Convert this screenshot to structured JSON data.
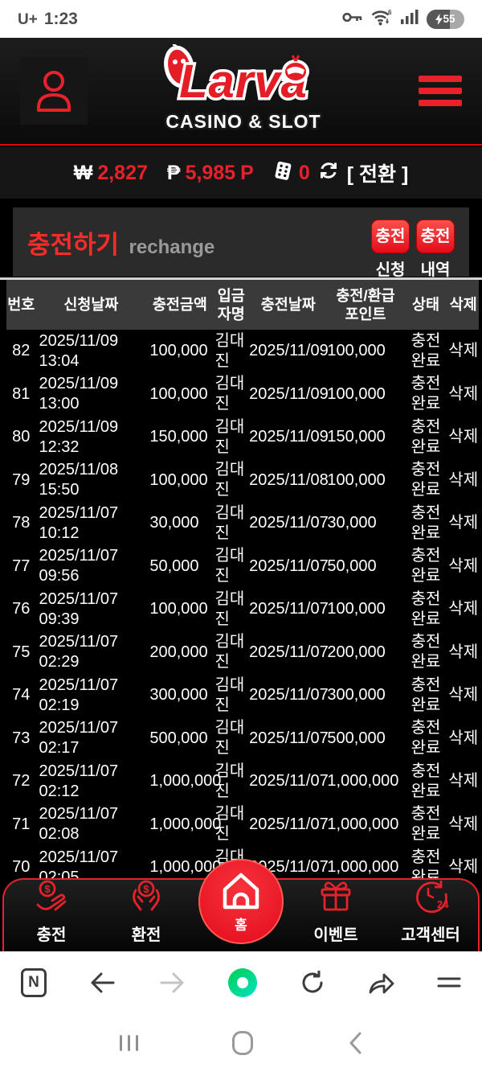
{
  "colors": {
    "accent_red": "#e8212b",
    "title_red": "#ff2a2a",
    "table_header_bg": "#3a3a3a"
  },
  "status_bar": {
    "carrier": "U+",
    "time": "1:23",
    "battery_percent": "55"
  },
  "header": {
    "logo_word": "Larva",
    "logo_tagline": "CASINO & SLOT"
  },
  "balance_bar": {
    "won_symbol": "₩",
    "won_amount": "2,827",
    "peso_symbol": "₱",
    "peso_amount": "5,985",
    "peso_unit": "P",
    "dice_count": "0",
    "convert_label": "[ 전환 ]"
  },
  "recharge": {
    "title": "충전하기",
    "subtitle": "rechange",
    "btn_request_top": "충전",
    "btn_request_bottom": "신청",
    "btn_history_top": "충전",
    "btn_history_bottom": "내역"
  },
  "table": {
    "headers": {
      "no": "번호",
      "request_date": "신청날짜",
      "amount": "충전금액",
      "depositor": "입금자명",
      "recharge_date": "충전날짜",
      "points": "충전/환급 포인트",
      "status": "상태",
      "delete": "삭제"
    },
    "rows": [
      {
        "no": "82",
        "date": "2025/11/09",
        "time": "13:04",
        "amount": "100,000",
        "depositor": "김대진",
        "recharge_date": "2025/11/09",
        "points": "100,000",
        "status": "충전완료",
        "delete": "삭제"
      },
      {
        "no": "81",
        "date": "2025/11/09",
        "time": "13:00",
        "amount": "100,000",
        "depositor": "김대진",
        "recharge_date": "2025/11/09",
        "points": "100,000",
        "status": "충전완료",
        "delete": "삭제"
      },
      {
        "no": "80",
        "date": "2025/11/09",
        "time": "12:32",
        "amount": "150,000",
        "depositor": "김대진",
        "recharge_date": "2025/11/09",
        "points": "150,000",
        "status": "충전완료",
        "delete": "삭제"
      },
      {
        "no": "79",
        "date": "2025/11/08",
        "time": "15:50",
        "amount": "100,000",
        "depositor": "김대진",
        "recharge_date": "2025/11/08",
        "points": "100,000",
        "status": "충전완료",
        "delete": "삭제"
      },
      {
        "no": "78",
        "date": "2025/11/07",
        "time": "10:12",
        "amount": "30,000",
        "depositor": "김대진",
        "recharge_date": "2025/11/07",
        "points": "30,000",
        "status": "충전완료",
        "delete": "삭제"
      },
      {
        "no": "77",
        "date": "2025/11/07",
        "time": "09:56",
        "amount": "50,000",
        "depositor": "김대진",
        "recharge_date": "2025/11/07",
        "points": "50,000",
        "status": "충전완료",
        "delete": "삭제"
      },
      {
        "no": "76",
        "date": "2025/11/07",
        "time": "09:39",
        "amount": "100,000",
        "depositor": "김대진",
        "recharge_date": "2025/11/07",
        "points": "100,000",
        "status": "충전완료",
        "delete": "삭제"
      },
      {
        "no": "75",
        "date": "2025/11/07",
        "time": "02:29",
        "amount": "200,000",
        "depositor": "김대진",
        "recharge_date": "2025/11/07",
        "points": "200,000",
        "status": "충전완료",
        "delete": "삭제"
      },
      {
        "no": "74",
        "date": "2025/11/07",
        "time": "02:19",
        "amount": "300,000",
        "depositor": "김대진",
        "recharge_date": "2025/11/07",
        "points": "300,000",
        "status": "충전완료",
        "delete": "삭제"
      },
      {
        "no": "73",
        "date": "2025/11/07",
        "time": "02:17",
        "amount": "500,000",
        "depositor": "김대진",
        "recharge_date": "2025/11/07",
        "points": "500,000",
        "status": "충전완료",
        "delete": "삭제"
      },
      {
        "no": "72",
        "date": "2025/11/07",
        "time": "02:12",
        "amount": "1,000,000",
        "depositor": "김대진",
        "recharge_date": "2025/11/07",
        "points": "1,000,000",
        "status": "충전완료",
        "delete": "삭제"
      },
      {
        "no": "71",
        "date": "2025/11/07",
        "time": "02:08",
        "amount": "1,000,000",
        "depositor": "김대진",
        "recharge_date": "2025/11/07",
        "points": "1,000,000",
        "status": "충전완료",
        "delete": "삭제"
      },
      {
        "no": "70",
        "date": "2025/11/07",
        "time": "02:05",
        "amount": "1,000,000",
        "depositor": "김대진",
        "recharge_date": "2025/11/07",
        "points": "1,000,000",
        "status": "충전완료",
        "delete": "삭제"
      }
    ]
  },
  "bottom_nav": {
    "items": [
      {
        "label": "충전"
      },
      {
        "label": "환전"
      },
      {
        "label": "홈"
      },
      {
        "label": "이벤트"
      },
      {
        "label": "고객센터"
      }
    ]
  }
}
